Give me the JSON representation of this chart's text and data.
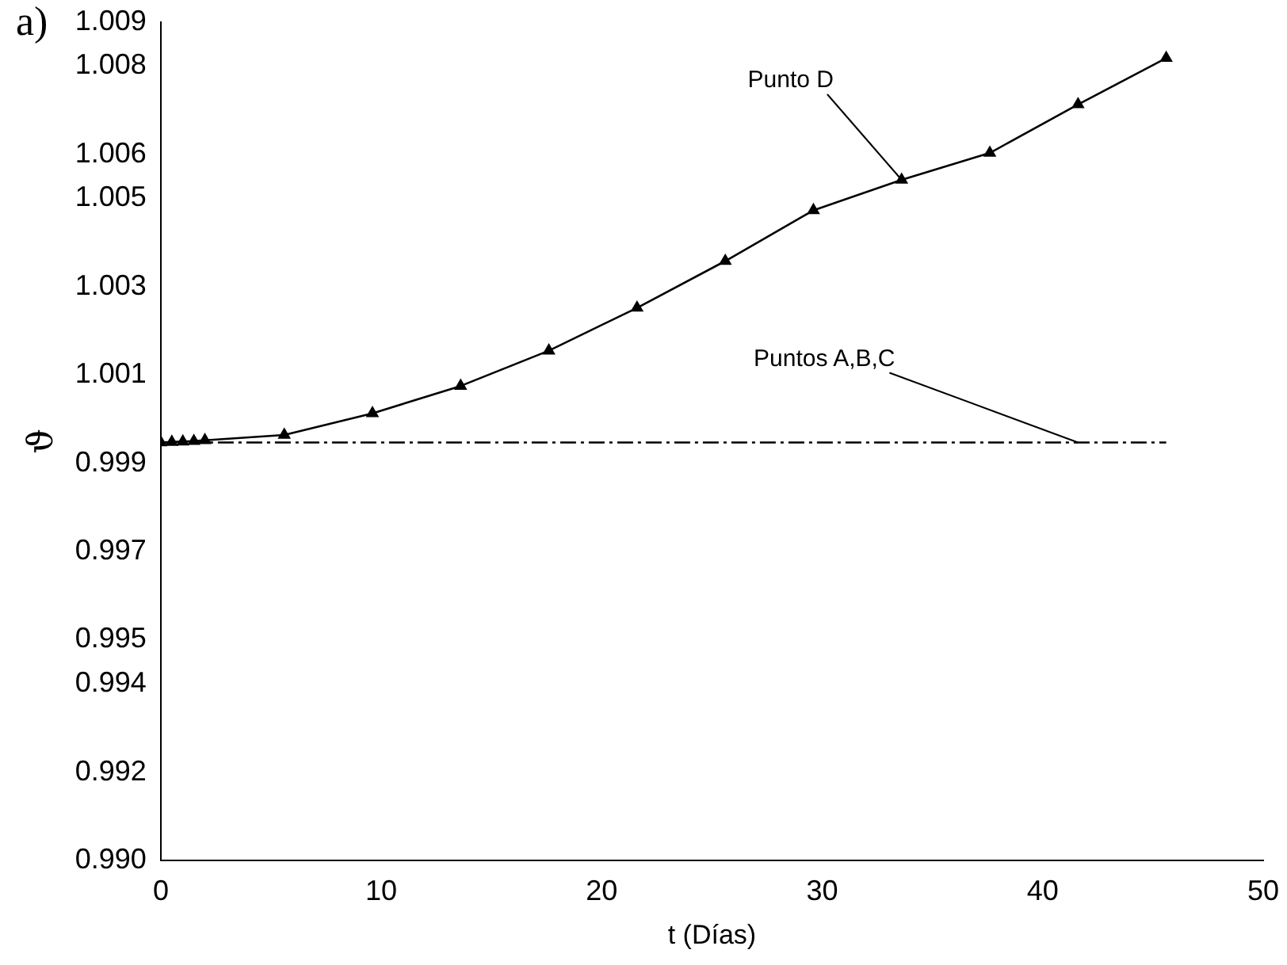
{
  "chart_data": {
    "type": "line",
    "title": "a)",
    "xlabel": "t (Días)",
    "ylabel": "ϑ",
    "x": [
      0,
      0.5,
      1,
      1.5,
      2,
      5.6,
      9.6,
      13.6,
      17.6,
      21.6,
      25.6,
      29.6,
      33.6,
      37.6,
      41.6,
      45.6
    ],
    "series": [
      {
        "name": "Punto D",
        "color": "#000000",
        "marker": "triangle",
        "line_style": "solid",
        "values": [
          0.99947,
          0.99948,
          0.99949,
          0.9995,
          0.99952,
          0.99964,
          1.00013,
          1.00075,
          1.00155,
          1.00252,
          1.00358,
          1.00473,
          1.00542,
          1.00603,
          1.00713,
          1.00818
        ]
      },
      {
        "name": "Puntos A,B,C",
        "color": "#000000",
        "marker": "none",
        "line_style": "dashed",
        "values": [
          0.99947,
          0.99947,
          0.99947,
          0.99947,
          0.99947,
          0.99947,
          0.99947,
          0.99947,
          0.99947,
          0.99947,
          0.99947,
          0.99947,
          0.99947,
          0.99947,
          0.99947,
          0.99947
        ]
      }
    ],
    "xlim": [
      0,
      50
    ],
    "xticks": [
      0,
      10,
      20,
      30,
      40,
      50
    ],
    "ylim": [
      0.99,
      1.009
    ],
    "yticks": [
      {
        "value": 0.99,
        "label": "0.990"
      },
      {
        "value": 0.992,
        "label": "0.992"
      },
      {
        "value": 0.994,
        "label": "0.994"
      },
      {
        "value": 0.995,
        "label": "0.995"
      },
      {
        "value": 0.997,
        "label": "0.997"
      },
      {
        "value": 0.999,
        "label": "0.999"
      },
      {
        "value": 1.001,
        "label": "1.001"
      },
      {
        "value": 1.003,
        "label": "1.003"
      },
      {
        "value": 1.005,
        "label": "1.005"
      },
      {
        "value": 1.006,
        "label": "1.006"
      },
      {
        "value": 1.008,
        "label": "1.008"
      },
      {
        "value": 1.009,
        "label": "1.009"
      }
    ],
    "grid": false,
    "legend": false
  }
}
